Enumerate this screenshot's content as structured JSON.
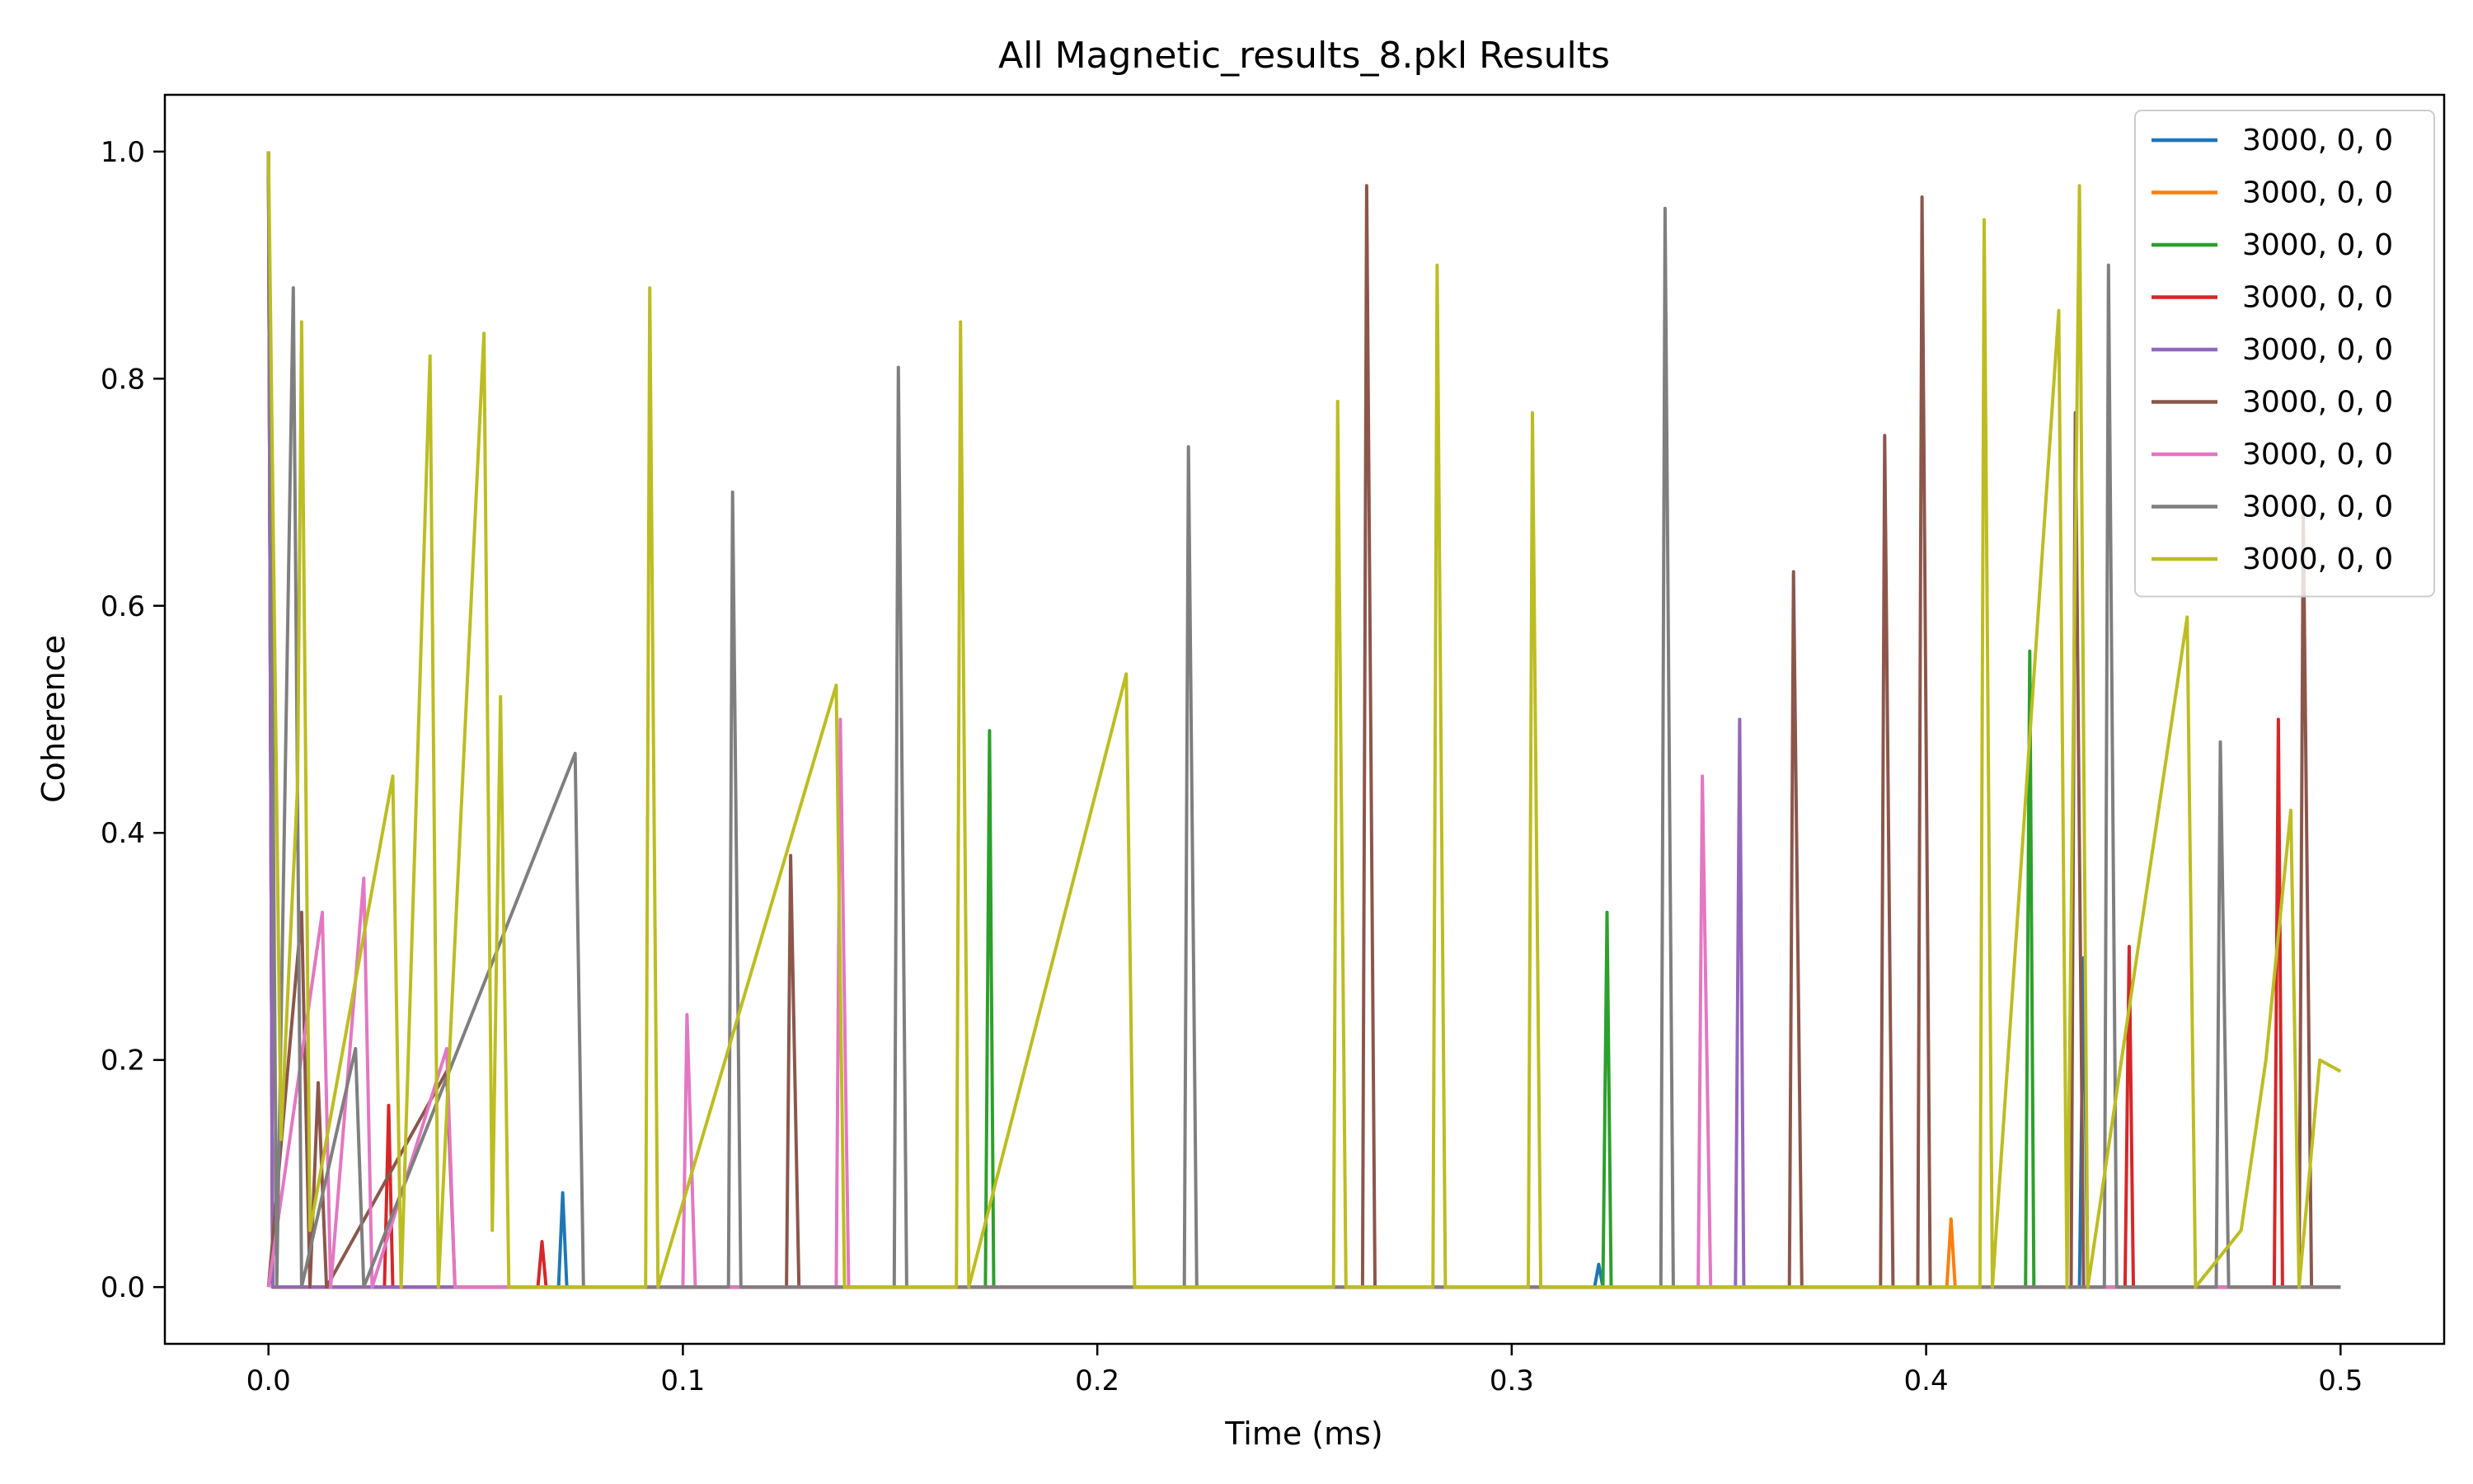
{
  "chart_data": {
    "type": "line",
    "title": "All Magnetic_results_8.pkl Results",
    "xlabel": "Time (ms)",
    "ylabel": "Coherence",
    "xlim": [
      -0.025,
      0.525
    ],
    "ylim": [
      -0.05,
      1.05
    ],
    "xticks": [
      0.0,
      0.1,
      0.2,
      0.3,
      0.4,
      0.5
    ],
    "xtick_labels": [
      "0.0",
      "0.1",
      "0.2",
      "0.3",
      "0.4",
      "0.5"
    ],
    "yticks": [
      0.0,
      0.2,
      0.4,
      0.6,
      0.8,
      1.0
    ],
    "ytick_labels": [
      "0.0",
      "0.2",
      "0.4",
      "0.6",
      "0.8",
      "1.0"
    ],
    "grid": false,
    "legend_position": "top-right",
    "series": [
      {
        "name": "3000, 0, 0",
        "color": "#1f77b4",
        "points": [
          [
            0.0,
            1.0
          ],
          [
            0.001,
            0.0
          ],
          [
            0.07,
            0.0
          ],
          [
            0.071,
            0.083
          ],
          [
            0.072,
            0.0
          ],
          [
            0.32,
            0.0
          ],
          [
            0.321,
            0.02
          ],
          [
            0.322,
            0.0
          ],
          [
            0.437,
            0.0
          ],
          [
            0.438,
            0.29
          ],
          [
            0.439,
            0.0
          ],
          [
            0.5,
            0.0
          ]
        ]
      },
      {
        "name": "3000, 0, 0",
        "color": "#ff7f0e",
        "points": [
          [
            0.0,
            1.0
          ],
          [
            0.001,
            0.0
          ],
          [
            0.405,
            0.0
          ],
          [
            0.406,
            0.06
          ],
          [
            0.407,
            0.0
          ],
          [
            0.5,
            0.0
          ]
        ]
      },
      {
        "name": "3000, 0, 0",
        "color": "#2ca02c",
        "points": [
          [
            0.0,
            1.0
          ],
          [
            0.001,
            0.0
          ],
          [
            0.173,
            0.0
          ],
          [
            0.174,
            0.49
          ],
          [
            0.175,
            0.0
          ],
          [
            0.322,
            0.0
          ],
          [
            0.323,
            0.33
          ],
          [
            0.324,
            0.0
          ],
          [
            0.424,
            0.0
          ],
          [
            0.425,
            0.56
          ],
          [
            0.426,
            0.0
          ],
          [
            0.5,
            0.0
          ]
        ]
      },
      {
        "name": "3000, 0, 0",
        "color": "#d62728",
        "points": [
          [
            0.0,
            1.0
          ],
          [
            0.001,
            0.0
          ],
          [
            0.028,
            0.0
          ],
          [
            0.029,
            0.16
          ],
          [
            0.03,
            0.0
          ],
          [
            0.065,
            0.0
          ],
          [
            0.066,
            0.04
          ],
          [
            0.067,
            0.0
          ],
          [
            0.448,
            0.0
          ],
          [
            0.449,
            0.3
          ],
          [
            0.45,
            0.0
          ],
          [
            0.484,
            0.0
          ],
          [
            0.485,
            0.5
          ],
          [
            0.486,
            0.0
          ],
          [
            0.5,
            0.0
          ]
        ]
      },
      {
        "name": "3000, 0, 0",
        "color": "#9467bd",
        "points": [
          [
            0.0,
            1.0
          ],
          [
            0.001,
            0.0
          ],
          [
            0.354,
            0.0
          ],
          [
            0.355,
            0.5
          ],
          [
            0.356,
            0.0
          ],
          [
            0.5,
            0.0
          ]
        ]
      },
      {
        "name": "3000, 0, 0",
        "color": "#8c564b",
        "points": [
          [
            0.0,
            0.0
          ],
          [
            0.008,
            0.33
          ],
          [
            0.01,
            0.0
          ],
          [
            0.012,
            0.18
          ],
          [
            0.014,
            0.0
          ],
          [
            0.043,
            0.19
          ],
          [
            0.045,
            0.0
          ],
          [
            0.125,
            0.0
          ],
          [
            0.126,
            0.38
          ],
          [
            0.128,
            0.0
          ],
          [
            0.264,
            0.0
          ],
          [
            0.265,
            0.97
          ],
          [
            0.267,
            0.0
          ],
          [
            0.367,
            0.0
          ],
          [
            0.368,
            0.63
          ],
          [
            0.37,
            0.0
          ],
          [
            0.389,
            0.0
          ],
          [
            0.39,
            0.75
          ],
          [
            0.392,
            0.0
          ],
          [
            0.398,
            0.0
          ],
          [
            0.399,
            0.96
          ],
          [
            0.401,
            0.0
          ],
          [
            0.435,
            0.0
          ],
          [
            0.436,
            0.77
          ],
          [
            0.438,
            0.0
          ],
          [
            0.49,
            0.0
          ],
          [
            0.491,
            0.68
          ],
          [
            0.493,
            0.0
          ],
          [
            0.5,
            0.0
          ]
        ]
      },
      {
        "name": "3000, 0, 0",
        "color": "#e377c2",
        "points": [
          [
            0.0,
            0.0
          ],
          [
            0.013,
            0.33
          ],
          [
            0.015,
            0.0
          ],
          [
            0.023,
            0.36
          ],
          [
            0.025,
            0.0
          ],
          [
            0.043,
            0.21
          ],
          [
            0.045,
            0.0
          ],
          [
            0.1,
            0.0
          ],
          [
            0.101,
            0.24
          ],
          [
            0.103,
            0.0
          ],
          [
            0.137,
            0.0
          ],
          [
            0.138,
            0.5
          ],
          [
            0.14,
            0.0
          ],
          [
            0.345,
            0.0
          ],
          [
            0.346,
            0.45
          ],
          [
            0.348,
            0.0
          ],
          [
            0.5,
            0.0
          ]
        ]
      },
      {
        "name": "3000, 0, 0",
        "color": "#7f7f7f",
        "points": [
          [
            0.0,
            1.0
          ],
          [
            0.002,
            0.0
          ],
          [
            0.006,
            0.88
          ],
          [
            0.008,
            0.0
          ],
          [
            0.021,
            0.21
          ],
          [
            0.023,
            0.0
          ],
          [
            0.074,
            0.47
          ],
          [
            0.076,
            0.0
          ],
          [
            0.111,
            0.0
          ],
          [
            0.112,
            0.7
          ],
          [
            0.114,
            0.0
          ],
          [
            0.151,
            0.0
          ],
          [
            0.152,
            0.81
          ],
          [
            0.154,
            0.0
          ],
          [
            0.221,
            0.0
          ],
          [
            0.222,
            0.74
          ],
          [
            0.224,
            0.0
          ],
          [
            0.336,
            0.0
          ],
          [
            0.337,
            0.95
          ],
          [
            0.339,
            0.0
          ],
          [
            0.443,
            0.0
          ],
          [
            0.444,
            0.9
          ],
          [
            0.446,
            0.0
          ],
          [
            0.47,
            0.0
          ],
          [
            0.471,
            0.48
          ],
          [
            0.473,
            0.0
          ],
          [
            0.5,
            0.0
          ]
        ]
      },
      {
        "name": "3000, 0, 0",
        "color": "#bcbd22",
        "points": [
          [
            0.0,
            1.0
          ],
          [
            0.003,
            0.13
          ],
          [
            0.007,
            0.44
          ],
          [
            0.008,
            0.85
          ],
          [
            0.01,
            0.05
          ],
          [
            0.03,
            0.45
          ],
          [
            0.032,
            0.0
          ],
          [
            0.039,
            0.82
          ],
          [
            0.041,
            0.0
          ],
          [
            0.052,
            0.84
          ],
          [
            0.054,
            0.05
          ],
          [
            0.056,
            0.52
          ],
          [
            0.058,
            0.0
          ],
          [
            0.091,
            0.0
          ],
          [
            0.092,
            0.88
          ],
          [
            0.094,
            0.0
          ],
          [
            0.137,
            0.53
          ],
          [
            0.139,
            0.0
          ],
          [
            0.166,
            0.0
          ],
          [
            0.167,
            0.85
          ],
          [
            0.169,
            0.0
          ],
          [
            0.207,
            0.54
          ],
          [
            0.209,
            0.0
          ],
          [
            0.257,
            0.0
          ],
          [
            0.258,
            0.78
          ],
          [
            0.26,
            0.0
          ],
          [
            0.281,
            0.0
          ],
          [
            0.282,
            0.9
          ],
          [
            0.284,
            0.0
          ],
          [
            0.304,
            0.0
          ],
          [
            0.305,
            0.77
          ],
          [
            0.307,
            0.0
          ],
          [
            0.413,
            0.0
          ],
          [
            0.414,
            0.94
          ],
          [
            0.416,
            0.0
          ],
          [
            0.432,
            0.86
          ],
          [
            0.434,
            0.0
          ],
          [
            0.437,
            0.97
          ],
          [
            0.439,
            0.0
          ],
          [
            0.463,
            0.59
          ],
          [
            0.465,
            0.0
          ],
          [
            0.476,
            0.05
          ],
          [
            0.482,
            0.2
          ],
          [
            0.488,
            0.42
          ],
          [
            0.49,
            0.0
          ],
          [
            0.495,
            0.2
          ],
          [
            0.5,
            0.19
          ]
        ]
      }
    ]
  }
}
